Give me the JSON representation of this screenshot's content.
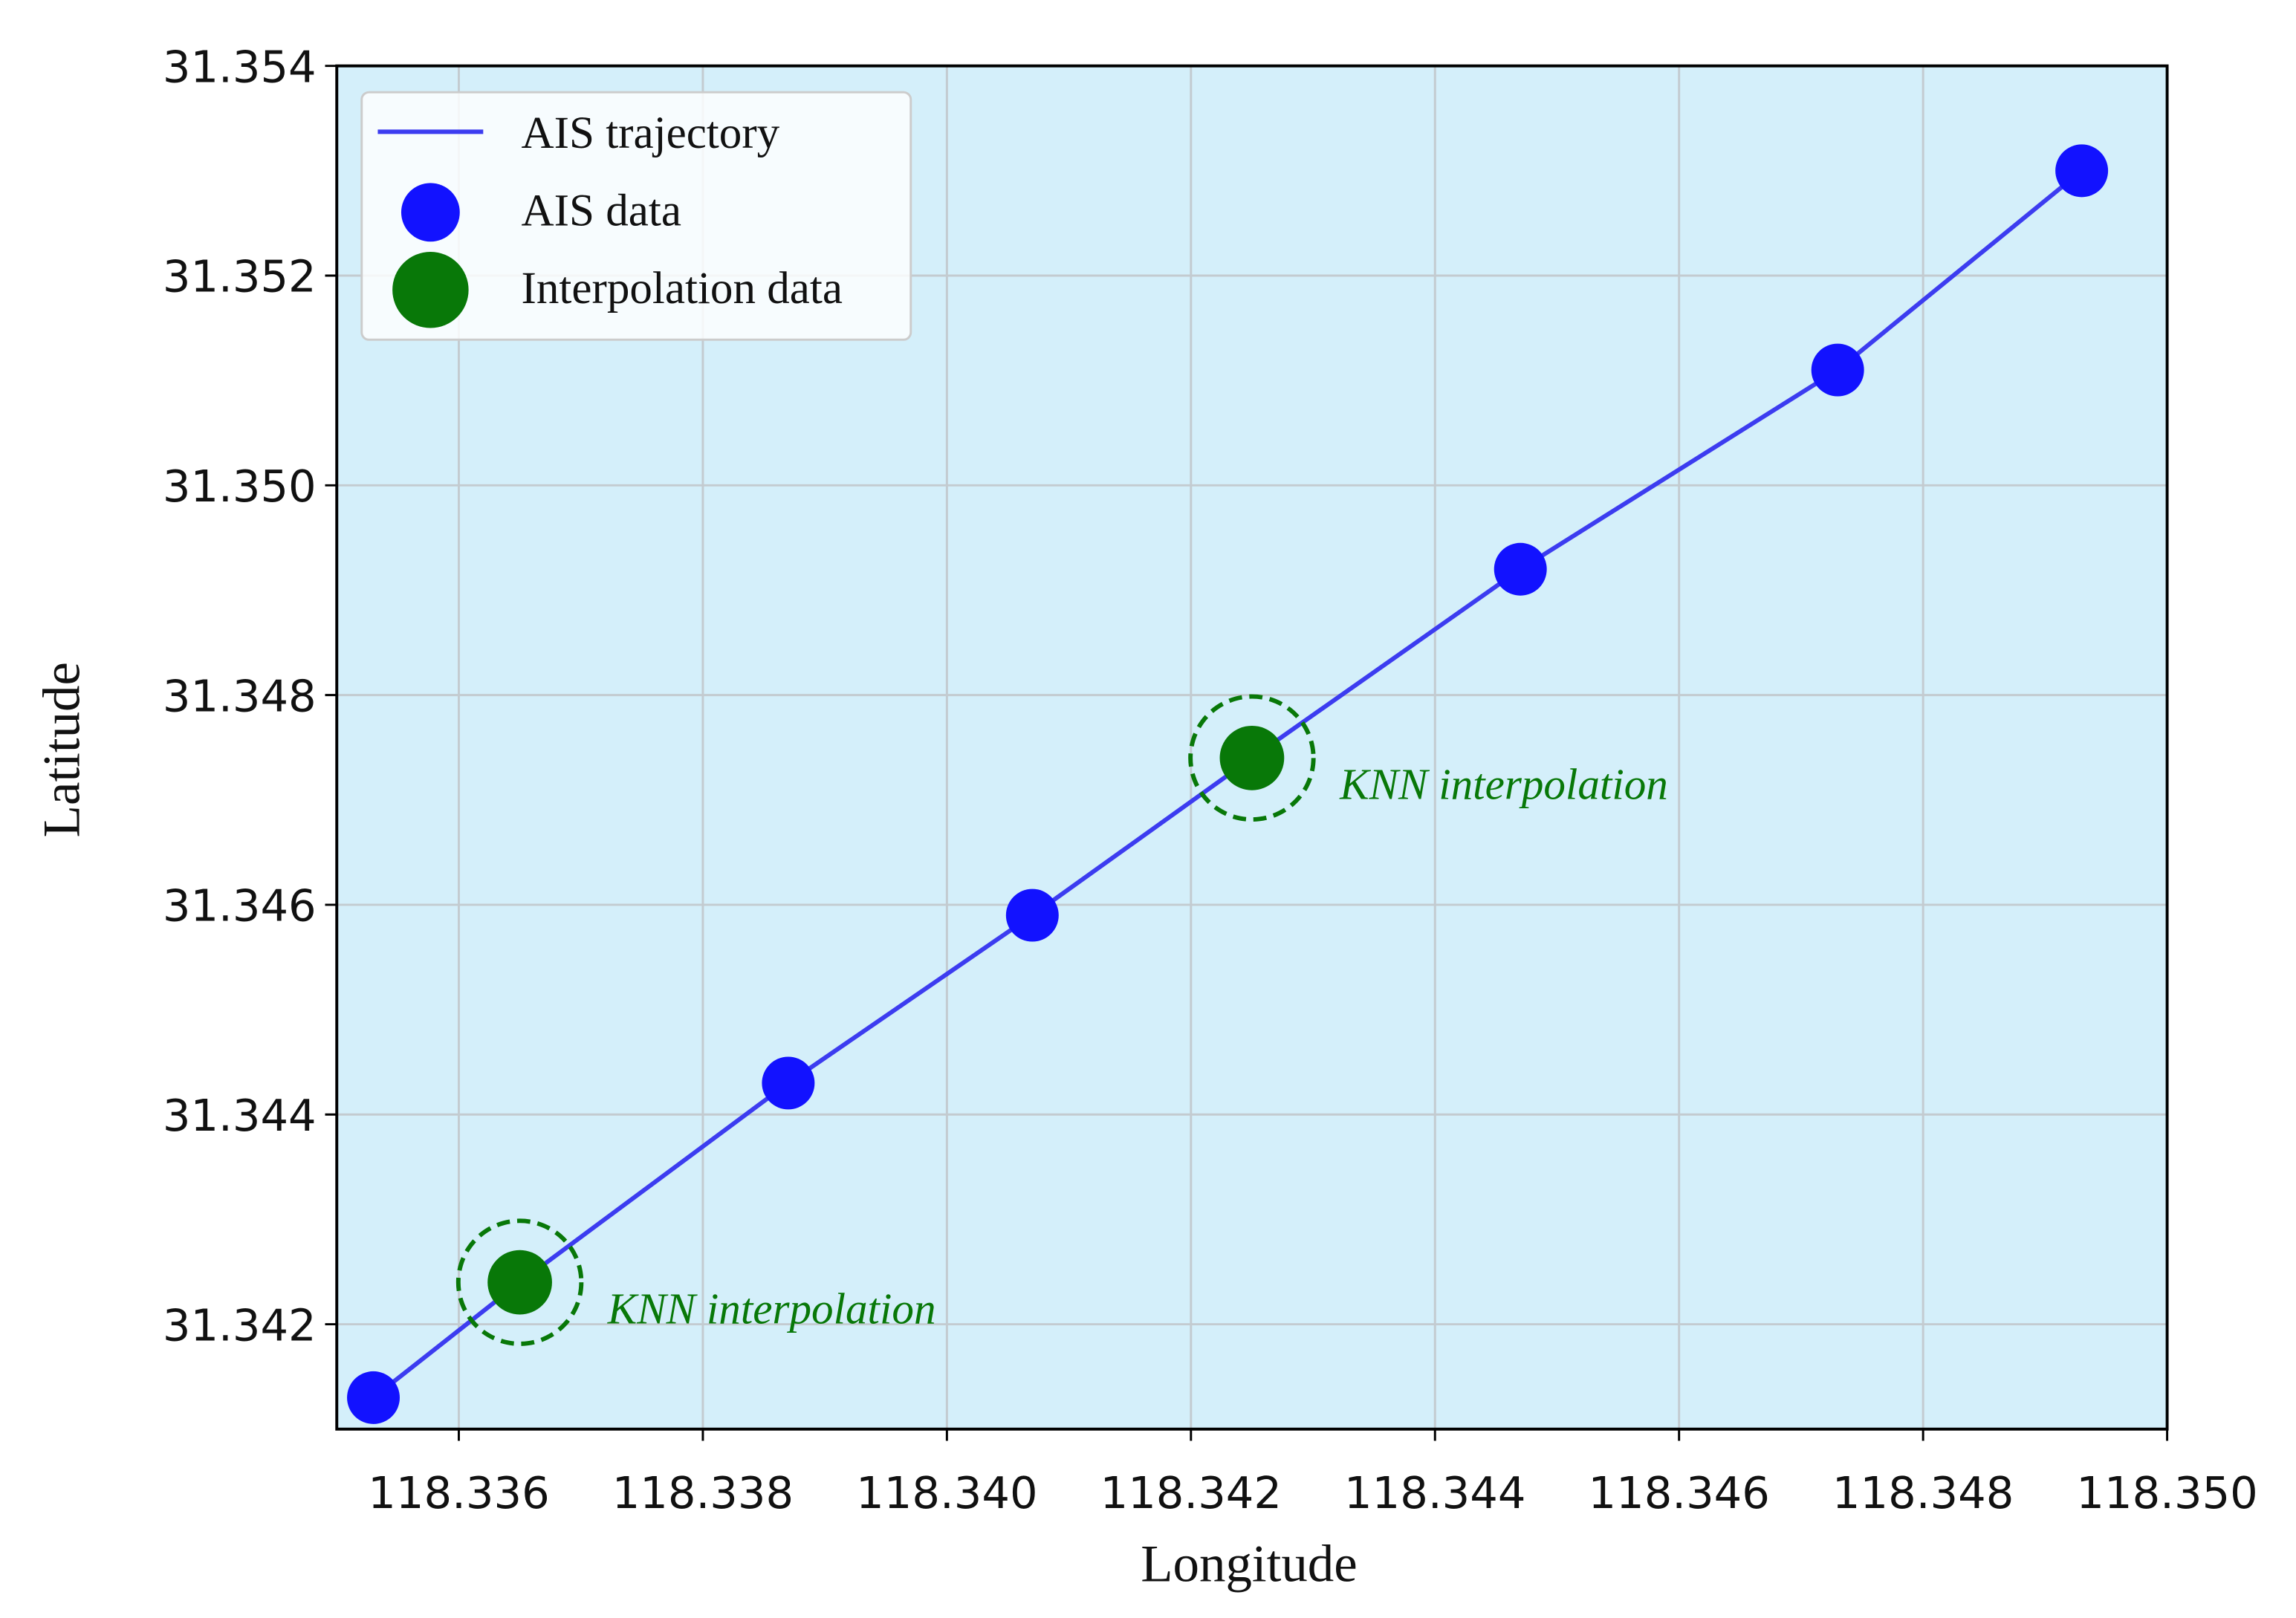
{
  "chart_data": {
    "type": "scatter",
    "x_label": "Longitude",
    "y_label": "Latitude",
    "xlim": [
      118.335,
      118.35
    ],
    "ylim": [
      31.341,
      31.354
    ],
    "xticks": [
      118.336,
      118.338,
      {
        "value": 118.34,
        "label": "118.340"
      },
      118.342,
      118.344,
      118.346,
      118.348,
      {
        "value": 118.35,
        "label": "118.350"
      }
    ],
    "yticks": [
      31.342,
      31.344,
      31.346,
      31.348,
      {
        "value": 31.35,
        "label": "31.350"
      },
      31.352,
      31.354
    ],
    "grid": true,
    "legend": "upper left",
    "background": "#d4effa",
    "series": [
      {
        "name": "AIS trajectory",
        "kind": "line",
        "color": "#3c3cf0",
        "x": [
          118.3353,
          118.3365,
          118.3387,
          118.3407,
          118.3425,
          118.3447,
          118.3473,
          118.3493
        ],
        "y": [
          31.3413,
          31.3424,
          31.3443,
          31.3459,
          31.3474,
          31.3492,
          31.3511,
          31.353
        ]
      },
      {
        "name": "AIS data",
        "kind": "points",
        "color": "#1212ff",
        "x": [
          118.3353,
          118.3387,
          118.3407,
          118.3447,
          118.3473,
          118.3493
        ],
        "y": [
          31.3413,
          31.3443,
          31.3459,
          31.3492,
          31.3511,
          31.353
        ]
      },
      {
        "name": "Interpolation data",
        "kind": "points",
        "color": "#087808",
        "x": [
          118.3365,
          118.3425
        ],
        "y": [
          31.3424,
          31.3474
        ]
      }
    ],
    "annotations": [
      "KNN interpolation",
      "KNN interpolation"
    ]
  }
}
